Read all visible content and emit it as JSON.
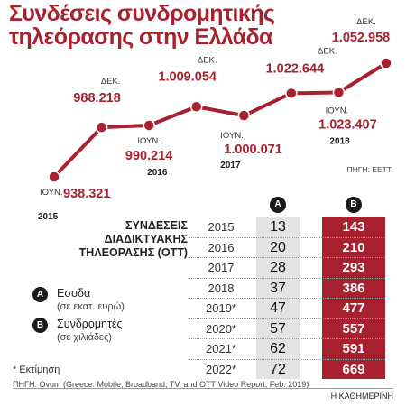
{
  "title": [
    "Συνδέσεις συνδρομητικής",
    "τηλεόρασης στην Ελλάδα"
  ],
  "colors": {
    "accent": "#a8212e",
    "dark": "#1a1a1a",
    "grey": "#e3e3e3"
  },
  "chart_data": [
    {
      "type": "line",
      "x": [
        "ΙΟΥΝ. 2015",
        "ΔΕΚ. 2015",
        "ΙΟΥΝ. 2016",
        "ΔΕΚ. 2016",
        "ΙΟΥΝ. 2017",
        "ΔΕΚ. 2017",
        "ΙΟΥΝ. 2018",
        "ΔΕΚ. 2018"
      ],
      "values": [
        938321,
        988218,
        990214,
        1009054,
        1000071,
        1022644,
        1023407,
        1052958
      ],
      "value_labels": [
        "938.321",
        "988.218",
        "990.214",
        "1.009.054",
        "1.000.071",
        "1.022.644",
        "1.023.407",
        "1.052.958"
      ],
      "month_labels": [
        "ΙΟΥΝ.",
        "ΔΕΚ.",
        "ΙΟΥΝ.",
        "ΔΕΚ.",
        "ΙΟΥΝ.",
        "ΔΕΚ.",
        "ΙΟΥΝ.",
        "ΔΕΚ."
      ],
      "year_labels": [
        "2015",
        "",
        "2016",
        "",
        "2017",
        "",
        "2018",
        ""
      ],
      "source": "ΠΗΓΗ: ΕΕΤΤ"
    },
    {
      "type": "table",
      "title": [
        "ΣΥΝΔΕΣΕΙΣ",
        "ΔΙΑΔΙΚΤΥΑΚΗΣ",
        "ΤΗΛΕΟΡΑΣΗΣ (OTT)"
      ],
      "columns": [
        "A",
        "B"
      ],
      "legend": [
        {
          "key": "A",
          "label": "Εσοδα",
          "sub": "(σε εκατ. ευρώ)"
        },
        {
          "key": "B",
          "label": "Συνδρομητές",
          "sub": "(σε χιλιάδες)"
        }
      ],
      "rows": [
        {
          "year": "2015",
          "a": "13",
          "b": "143"
        },
        {
          "year": "2016",
          "a": "20",
          "b": "210"
        },
        {
          "year": "2017",
          "a": "28",
          "b": "293"
        },
        {
          "year": "2018",
          "a": "37",
          "b": "386"
        },
        {
          "year": "2019*",
          "a": "47",
          "b": "477"
        },
        {
          "year": "2020*",
          "a": "57",
          "b": "557"
        },
        {
          "year": "2021*",
          "a": "62",
          "b": "591"
        },
        {
          "year": "2022*",
          "a": "72",
          "b": "669"
        }
      ],
      "footnote": "* Εκτίμηση",
      "source": "ΠΗΓΗ: Ovum (Greece: Mobile, Broadband, TV, and OTT Video Report, Feb. 2019)"
    }
  ],
  "publisher": "Η ΚΑΘΗΜΕΡΙΝΗ"
}
